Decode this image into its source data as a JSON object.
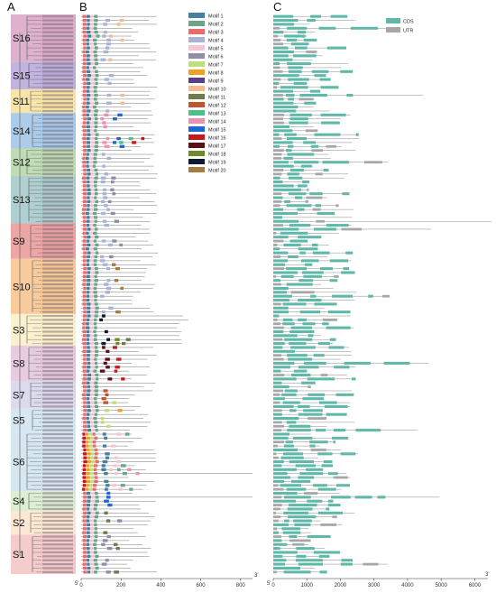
{
  "panels": {
    "a": "A",
    "b": "B",
    "c": "C"
  },
  "groups": [
    {
      "label": "S16",
      "rows": 12,
      "color": "#d8a3c4"
    },
    {
      "label": "S15",
      "rows": 7,
      "color": "#b7a6d9"
    },
    {
      "label": "S11",
      "rows": 6,
      "color": "#f7e09a"
    },
    {
      "label": "S14",
      "rows": 9,
      "color": "#9dc3e6"
    },
    {
      "label": "S12",
      "rows": 7,
      "color": "#b5d6a7"
    },
    {
      "label": "S13",
      "rows": 12,
      "color": "#a2c7c9"
    },
    {
      "label": "S9",
      "rows": 9,
      "color": "#e99797"
    },
    {
      "label": "S10",
      "rows": 14,
      "color": "#f6c28b"
    },
    {
      "label": "S3",
      "rows": 8,
      "color": "#fbeec5"
    },
    {
      "label": "S8",
      "rows": 9,
      "color": "#e3c3d9"
    },
    {
      "label": "S7",
      "rows": 7,
      "color": "#d6d3ea"
    },
    {
      "label": "S5",
      "rows": 6,
      "color": "#cfe3ef"
    },
    {
      "label": "S6",
      "rows": 15,
      "color": "#cfe3ef"
    },
    {
      "label": "S4",
      "rows": 5,
      "color": "#d7ebcc"
    },
    {
      "label": "S2",
      "rows": 6,
      "color": "#fde4cc"
    },
    {
      "label": "S1",
      "rows": 10,
      "color": "#f2c3c3"
    }
  ],
  "motif_legend": [
    {
      "name": "Motif 1",
      "color": "#4a7fa0"
    },
    {
      "name": "Motif 2",
      "color": "#6aa58a"
    },
    {
      "name": "Motif 3",
      "color": "#e86c6c"
    },
    {
      "name": "Motif 4",
      "color": "#a8b4d6"
    },
    {
      "name": "Motif 5",
      "color": "#f7c6d4"
    },
    {
      "name": "Motif 6",
      "color": "#8f8ea8"
    },
    {
      "name": "Motif 7",
      "color": "#bde07a"
    },
    {
      "name": "Motif 8",
      "color": "#f2a01e"
    },
    {
      "name": "Motif 9",
      "color": "#5a3f86"
    },
    {
      "name": "Motif 10",
      "color": "#f7b98e"
    },
    {
      "name": "Motif 11",
      "color": "#6f7a4c"
    },
    {
      "name": "Motif 12",
      "color": "#c2552d"
    },
    {
      "name": "Motif 13",
      "color": "#4cbf8c"
    },
    {
      "name": "Motif 14",
      "color": "#f08fb2"
    },
    {
      "name": "Motif 15",
      "color": "#1f67d6"
    },
    {
      "name": "Motif 16",
      "color": "#c9171c"
    },
    {
      "name": "Motif 17",
      "color": "#5b0f16"
    },
    {
      "name": "Motif 18",
      "color": "#6f8a2a"
    },
    {
      "name": "Motif 19",
      "color": "#0d1833"
    },
    {
      "name": "Motif 20",
      "color": "#a87a3f"
    }
  ],
  "gene_legend": [
    {
      "name": "CDS",
      "color": "#5fb8a8"
    },
    {
      "name": "UTR",
      "color": "#a7a7a7"
    }
  ],
  "motif_axis": {
    "ticks": [
      "0",
      "200",
      "400",
      "600",
      "800"
    ],
    "start_label": "5'",
    "end_label": "3'",
    "max": 860
  },
  "gene_axis": {
    "ticks": [
      "0",
      "1000",
      "2000",
      "3000",
      "4000",
      "5000",
      "6000"
    ],
    "start_label": "5'",
    "end_label": "3'",
    "max": 6500
  }
}
